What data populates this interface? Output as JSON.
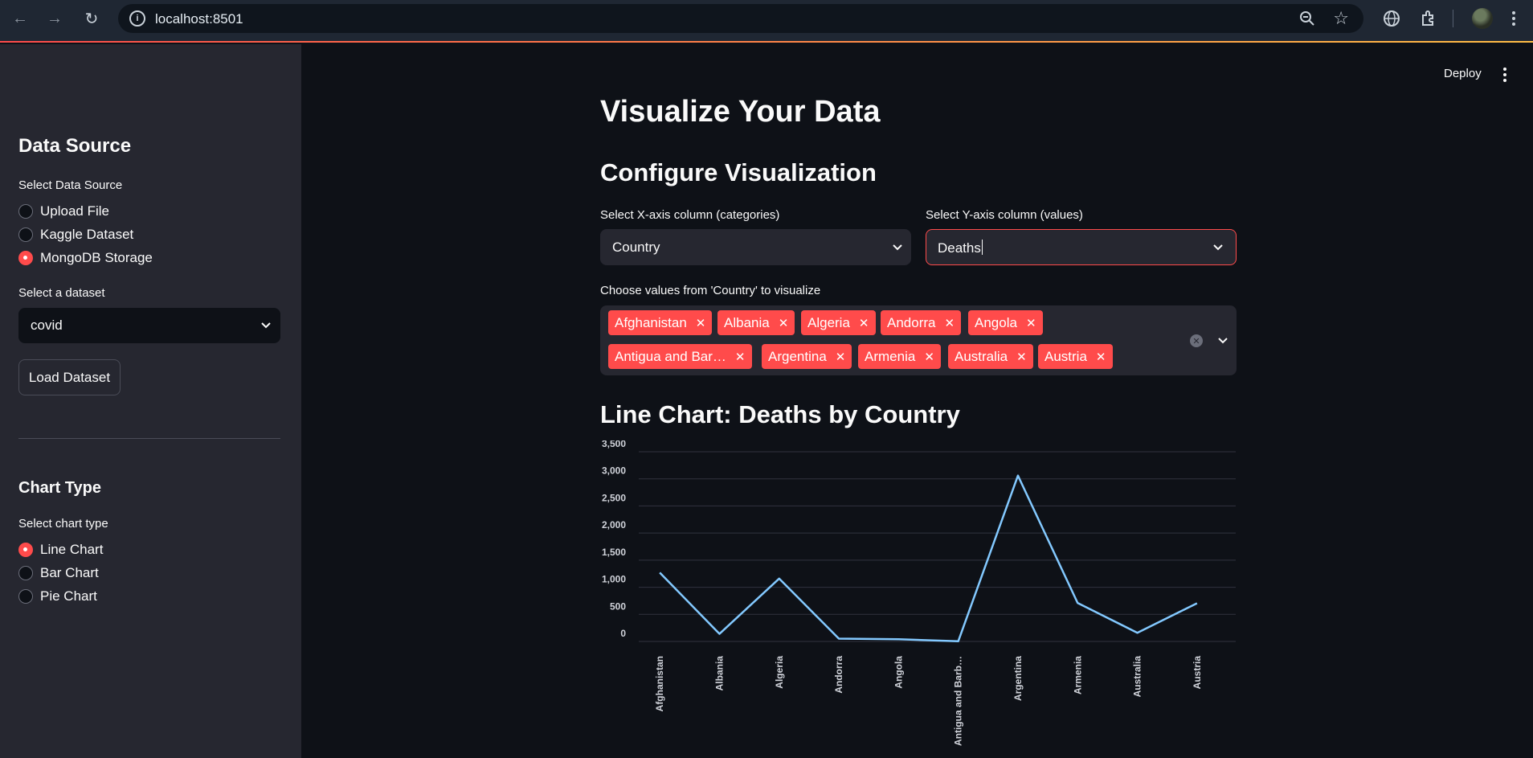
{
  "browser": {
    "url": "localhost:8501"
  },
  "sidebar": {
    "data_source_heading": "Data Source",
    "select_data_source_label": "Select Data Source",
    "data_source_options": [
      {
        "label": "Upload File",
        "selected": false
      },
      {
        "label": "Kaggle Dataset",
        "selected": false
      },
      {
        "label": "MongoDB Storage",
        "selected": true
      }
    ],
    "select_dataset_label": "Select a dataset",
    "dataset_value": "covid",
    "load_button": "Load Dataset",
    "chart_type_heading": "Chart Type",
    "select_chart_type_label": "Select chart type",
    "chart_type_options": [
      {
        "label": "Line Chart",
        "selected": true
      },
      {
        "label": "Bar Chart",
        "selected": false
      },
      {
        "label": "Pie Chart",
        "selected": false
      }
    ]
  },
  "header": {
    "deploy_label": "Deploy"
  },
  "main": {
    "title": "Visualize Your Data",
    "configure_heading": "Configure Visualization",
    "x_axis_label": "Select X-axis column (categories)",
    "x_axis_value": "Country",
    "y_axis_label": "Select Y-axis column (values)",
    "y_axis_value": "Deaths",
    "multiselect_label": "Choose values from 'Country' to visualize",
    "selected_tags": [
      "Afghanistan",
      "Albania",
      "Algeria",
      "Andorra",
      "Angola",
      "Antigua and Bar…",
      "Argentina",
      "Armenia",
      "Australia",
      "Austria"
    ],
    "chart_heading": "Line Chart: Deaths by Country"
  },
  "colors": {
    "accent": "#ff4b4b",
    "line": "#83c9ff",
    "sidebar_bg": "#262730",
    "main_bg": "#0e1117"
  },
  "chart_data": {
    "type": "line",
    "categories": [
      "Afghanistan",
      "Albania",
      "Algeria",
      "Andorra",
      "Angola",
      "Antigua and Barb…",
      "Argentina",
      "Armenia",
      "Australia",
      "Austria"
    ],
    "values": [
      1270,
      140,
      1160,
      52,
      41,
      3,
      3060,
      710,
      160,
      705
    ],
    "ylim": [
      0,
      3500
    ],
    "yticks": [
      0,
      500,
      1000,
      1500,
      2000,
      2500,
      3000,
      3500
    ],
    "ytick_labels": [
      "0",
      "500",
      "1,000",
      "1,500",
      "2,000",
      "2,500",
      "3,000",
      "3,500"
    ],
    "grid": true
  }
}
